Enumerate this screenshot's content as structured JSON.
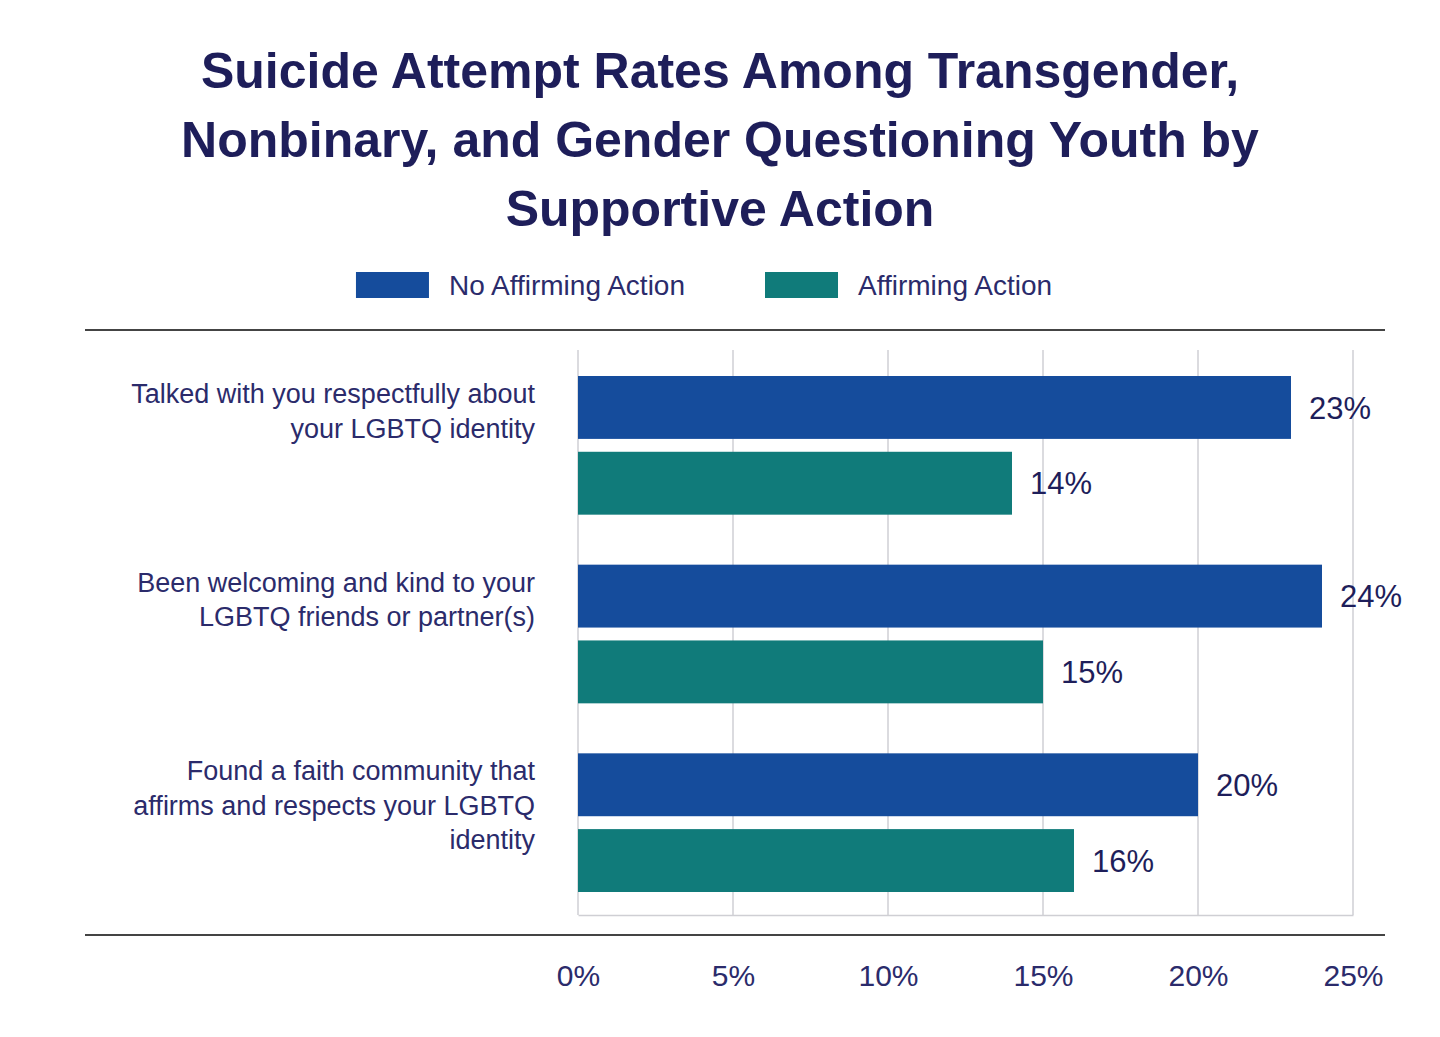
{
  "chart_data": {
    "type": "bar",
    "orientation": "horizontal",
    "title": "Suicide Attempt Rates Among Transgender, Nonbinary, and Gender Questioning Youth by Supportive Action",
    "categories": [
      "Talked with you respectfully about your LGBTQ identity",
      "Been welcoming and kind to your LGBTQ friends or partner(s)",
      "Found a faith community that affirms and respects your LGBTQ identity"
    ],
    "series": [
      {
        "name": "No Affirming Action",
        "color": "#154c9c",
        "values": [
          23,
          24,
          20
        ],
        "value_labels": [
          "23%",
          "24%",
          "20%"
        ]
      },
      {
        "name": "Affirming Action",
        "color": "#107b7a",
        "values": [
          14,
          15,
          16
        ],
        "value_labels": [
          "14%",
          "15%",
          "16%"
        ]
      }
    ],
    "xlim": [
      0,
      25
    ],
    "xticks": [
      {
        "value": 0,
        "label": "0%"
      },
      {
        "value": 5,
        "label": "5%"
      },
      {
        "value": 10,
        "label": "10%"
      },
      {
        "value": 15,
        "label": "15%"
      },
      {
        "value": 20,
        "label": "20%"
      },
      {
        "value": 25,
        "label": "25%"
      }
    ],
    "grid": true,
    "legend": "top",
    "data_labels": true
  }
}
